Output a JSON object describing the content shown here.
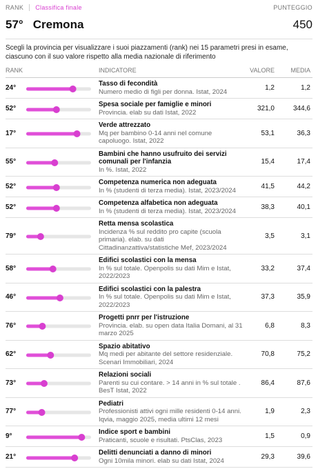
{
  "header": {
    "rank_label": "RANK",
    "tab": "Classifica finale",
    "score_label": "PUNTEGGIO",
    "rank": "57°",
    "province": "Cremona",
    "score": "450"
  },
  "intro": "Scegli la provincia per visualizzare i suoi piazzamenti (rank) nei 15 parametri presi in esame, ciascuno con il suo valore rispetto alla media nazionale di riferimento",
  "table": {
    "columns": [
      "RANK",
      "INDICATORE",
      "VALORE",
      "MEDIA"
    ],
    "rows": [
      {
        "rank": {
          "value": 24,
          "label": "24°"
        },
        "name": "Tasso di fecondità",
        "desc": "Numero medio di figli per donna. Istat, 2024",
        "value": "1,2",
        "media": "1,2"
      },
      {
        "rank": {
          "value": 52,
          "label": "52°"
        },
        "name": "Spesa sociale per famiglie e minori",
        "desc": "Provincia. elab su dati Istat, 2022",
        "value": "321,0",
        "media": "344,6"
      },
      {
        "rank": {
          "value": 17,
          "label": "17°"
        },
        "name": "Verde attrezzato",
        "desc": "Mq per bambino 0-14 anni nel comune capoluogo. Istat, 2022",
        "value": "53,1",
        "media": "36,3"
      },
      {
        "rank": {
          "value": 55,
          "label": "55°"
        },
        "name": "Bambini che hanno usufruito dei servizi comunali per l'infanzia",
        "desc": "In %. Istat, 2022",
        "value": "15,4",
        "media": "17,4"
      },
      {
        "rank": {
          "value": 52,
          "label": "52°"
        },
        "name": "Competenza numerica non adeguata",
        "desc": "In % (studenti di terza media). Istat, 2023/2024",
        "value": "41,5",
        "media": "44,2"
      },
      {
        "rank": {
          "value": 52,
          "label": "52°"
        },
        "name": "Competenza alfabetica non adeguata",
        "desc": "In % (studenti di terza media). Istat, 2023/2024",
        "value": "38,3",
        "media": "40,1"
      },
      {
        "rank": {
          "value": 79,
          "label": "79°"
        },
        "name": "Retta mensa scolastica",
        "desc": "Incidenza % sul reddito pro capite (scuola primaria). elab. su dati Cittadinanzattiva/statistiche Mef, 2023/2024",
        "value": "3,5",
        "media": "3,1"
      },
      {
        "rank": {
          "value": 58,
          "label": "58°"
        },
        "name": "Edifici scolastici con la mensa",
        "desc": "In % sul totale. Openpolis su dati Mim e Istat, 2022/2023",
        "value": "33,2",
        "media": "37,4"
      },
      {
        "rank": {
          "value": 46,
          "label": "46°"
        },
        "name": "Edifici scolastici con la palestra",
        "desc": "In % sul totale. Openpolis su dati Mim e Istat, 2022/2023",
        "value": "37,3",
        "media": "35,9"
      },
      {
        "rank": {
          "value": 76,
          "label": "76°"
        },
        "name": "Progetti pnrr per l'istruzione",
        "desc": "Provincia. elab. su open data Italia Domani, al 31 marzo 2025",
        "value": "6,8",
        "media": "8,3"
      },
      {
        "rank": {
          "value": 62,
          "label": "62°"
        },
        "name": "Spazio abitativo",
        "desc": "Mq medi per abitante del settore residenziale. Scenari Immobiliari, 2024",
        "value": "70,8",
        "media": "75,2"
      },
      {
        "rank": {
          "value": 73,
          "label": "73°"
        },
        "name": "Relazioni sociali",
        "desc": "Parenti su cui contare. > 14 anni in % sul totale . BesT Istat, 2022",
        "value": "86,4",
        "media": "87,6"
      },
      {
        "rank": {
          "value": 77,
          "label": "77°"
        },
        "name": "Pediatri",
        "desc": "Professionisti attivi ogni mille residenti 0-14 anni. Iqvia, maggio 2025, media ultimi 12 mesi",
        "value": "1,9",
        "media": "2,3"
      },
      {
        "rank": {
          "value": 9,
          "label": "9°"
        },
        "name": "Indice sport e bambini",
        "desc": "Praticanti, scuole e risultati. PtsClas, 2023",
        "value": "1,5",
        "media": "0,9"
      },
      {
        "rank": {
          "value": 21,
          "label": "21°"
        },
        "name": "Delitti denunciati a danno di minori",
        "desc": "Ogni 10mila minori. elab su dati Istat, 2024",
        "value": "29,3",
        "media": "39,6"
      }
    ]
  }
}
